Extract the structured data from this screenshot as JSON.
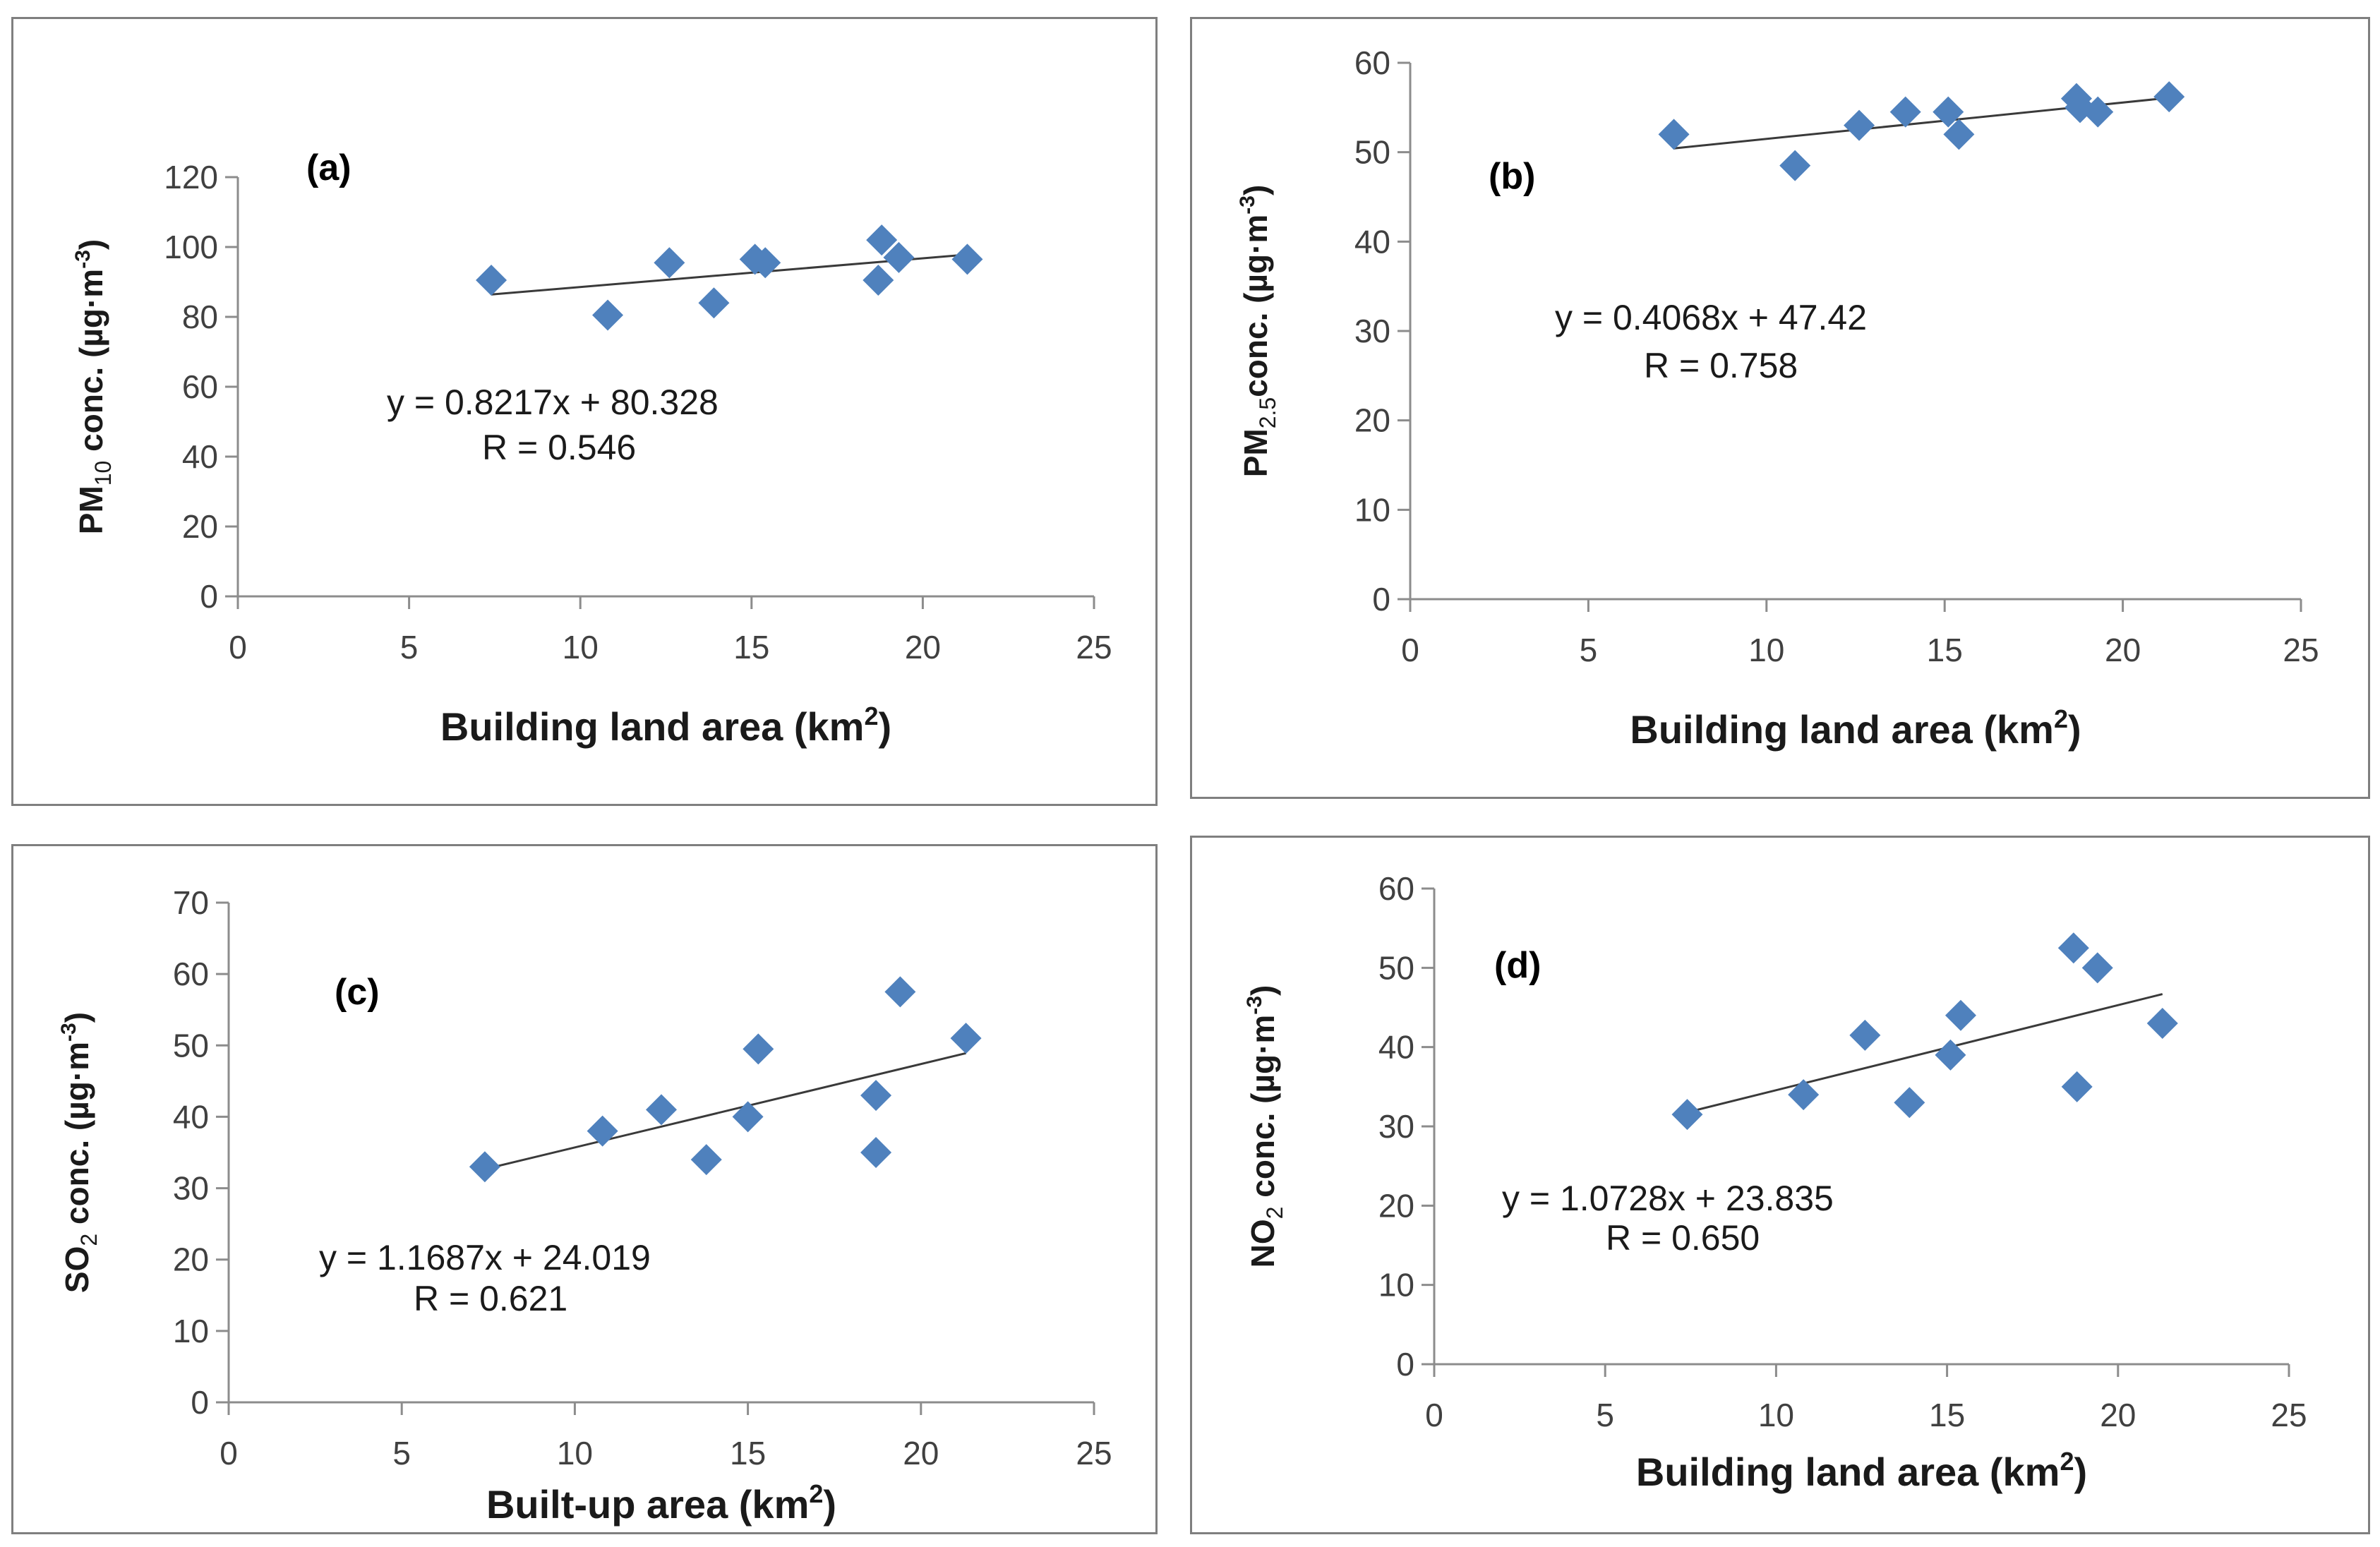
{
  "marker_color": "#4f81bd",
  "line_color": "#3a3a3a",
  "chart_data": [
    {
      "id": "a",
      "type": "scatter",
      "panel_label": "(a)",
      "ylabel_main": "PM",
      "ylabel_sub": "10",
      "ylabel_rest": " conc. (µg·m",
      "ylabel_sup": "-3",
      "ylabel_end": ")",
      "xlabel_main": "Building land area (km",
      "xlabel_sup": "2",
      "xlabel_end": ")",
      "xlim": [
        0,
        25
      ],
      "ylim": [
        0,
        120
      ],
      "xticks": [
        0,
        5,
        10,
        15,
        20,
        25
      ],
      "yticks": [
        0,
        20,
        40,
        60,
        80,
        100,
        120
      ],
      "x": [
        7.4,
        10.8,
        12.6,
        13.9,
        15.1,
        15.4,
        18.7,
        18.8,
        19.3,
        21.3
      ],
      "y": [
        90.5,
        80.5,
        95.5,
        84,
        96.5,
        95.5,
        90.5,
        102,
        97,
        96.5
      ],
      "trendline": {
        "slope": 0.8217,
        "intercept": 80.328,
        "x_range": [
          7.4,
          21.3
        ]
      },
      "equation": "y = 0.8217x + 80.328",
      "r_text": "R = 0.546"
    },
    {
      "id": "b",
      "type": "scatter",
      "panel_label": "(b)",
      "ylabel_main": "PM",
      "ylabel_sub": "2.5",
      "ylabel_rest": "conc. (µg·m",
      "ylabel_sup": "-3",
      "ylabel_end": ")",
      "xlabel_main": "Building land area (km",
      "xlabel_sup": "2",
      "xlabel_end": ")",
      "xlim": [
        0,
        25
      ],
      "ylim": [
        0,
        60
      ],
      "xticks": [
        0,
        5,
        10,
        15,
        20,
        25
      ],
      "yticks": [
        0,
        10,
        20,
        30,
        40,
        50,
        60
      ],
      "x": [
        7.4,
        10.8,
        12.6,
        13.9,
        15.1,
        15.4,
        18.7,
        18.8,
        19.3,
        21.3
      ],
      "y": [
        52,
        48.5,
        53,
        54.5,
        54.5,
        52,
        56,
        55,
        54.5,
        56.2
      ],
      "trendline": {
        "slope": 0.4068,
        "intercept": 47.42,
        "x_range": [
          7.4,
          21.3
        ]
      },
      "equation": "y = 0.4068x + 47.42",
      "r_text": "R = 0.758"
    },
    {
      "id": "c",
      "type": "scatter",
      "panel_label": "(c)",
      "ylabel_main": "SO",
      "ylabel_sub": "2",
      "ylabel_rest": " conc. (µg·m",
      "ylabel_sup": "-3",
      "ylabel_end": ")",
      "xlabel_main": "Built-up area (km",
      "xlabel_sup": "2",
      "xlabel_end": ")",
      "xlim": [
        0,
        25
      ],
      "ylim": [
        0,
        70
      ],
      "xticks": [
        0,
        5,
        10,
        15,
        20,
        25
      ],
      "yticks": [
        0,
        10,
        20,
        30,
        40,
        50,
        60,
        70
      ],
      "x": [
        7.4,
        10.8,
        12.5,
        13.8,
        15.0,
        15.3,
        18.7,
        18.7,
        19.4,
        21.3
      ],
      "y": [
        33,
        38,
        41,
        34,
        40,
        49.5,
        43,
        35,
        57.5,
        51
      ],
      "trendline": {
        "slope": 1.1687,
        "intercept": 24.019,
        "x_range": [
          7.4,
          21.3
        ]
      },
      "equation": "y = 1.1687x + 24.019",
      "r_text": "R = 0.621"
    },
    {
      "id": "d",
      "type": "scatter",
      "panel_label": "(d)",
      "ylabel_main": "NO",
      "ylabel_sub": "2",
      "ylabel_rest": " conc. (µg·m",
      "ylabel_sup": "-3",
      "ylabel_end": ")",
      "xlabel_main": "Building land area (km",
      "xlabel_sup": "2",
      "xlabel_end": ")",
      "xlim": [
        0,
        25
      ],
      "ylim": [
        0,
        60
      ],
      "xticks": [
        0,
        5,
        10,
        15,
        20,
        25
      ],
      "yticks": [
        0,
        10,
        20,
        30,
        40,
        50,
        60
      ],
      "x": [
        7.4,
        10.8,
        12.6,
        13.9,
        15.1,
        15.4,
        18.7,
        18.8,
        19.4,
        21.3
      ],
      "y": [
        31.5,
        34,
        41.5,
        33,
        39,
        44,
        52.5,
        35,
        50,
        43
      ],
      "trendline": {
        "slope": 1.0728,
        "intercept": 23.835,
        "x_range": [
          7.4,
          21.3
        ]
      },
      "equation": "y = 1.0728x + 23.835",
      "r_text": "R = 0.650"
    }
  ]
}
